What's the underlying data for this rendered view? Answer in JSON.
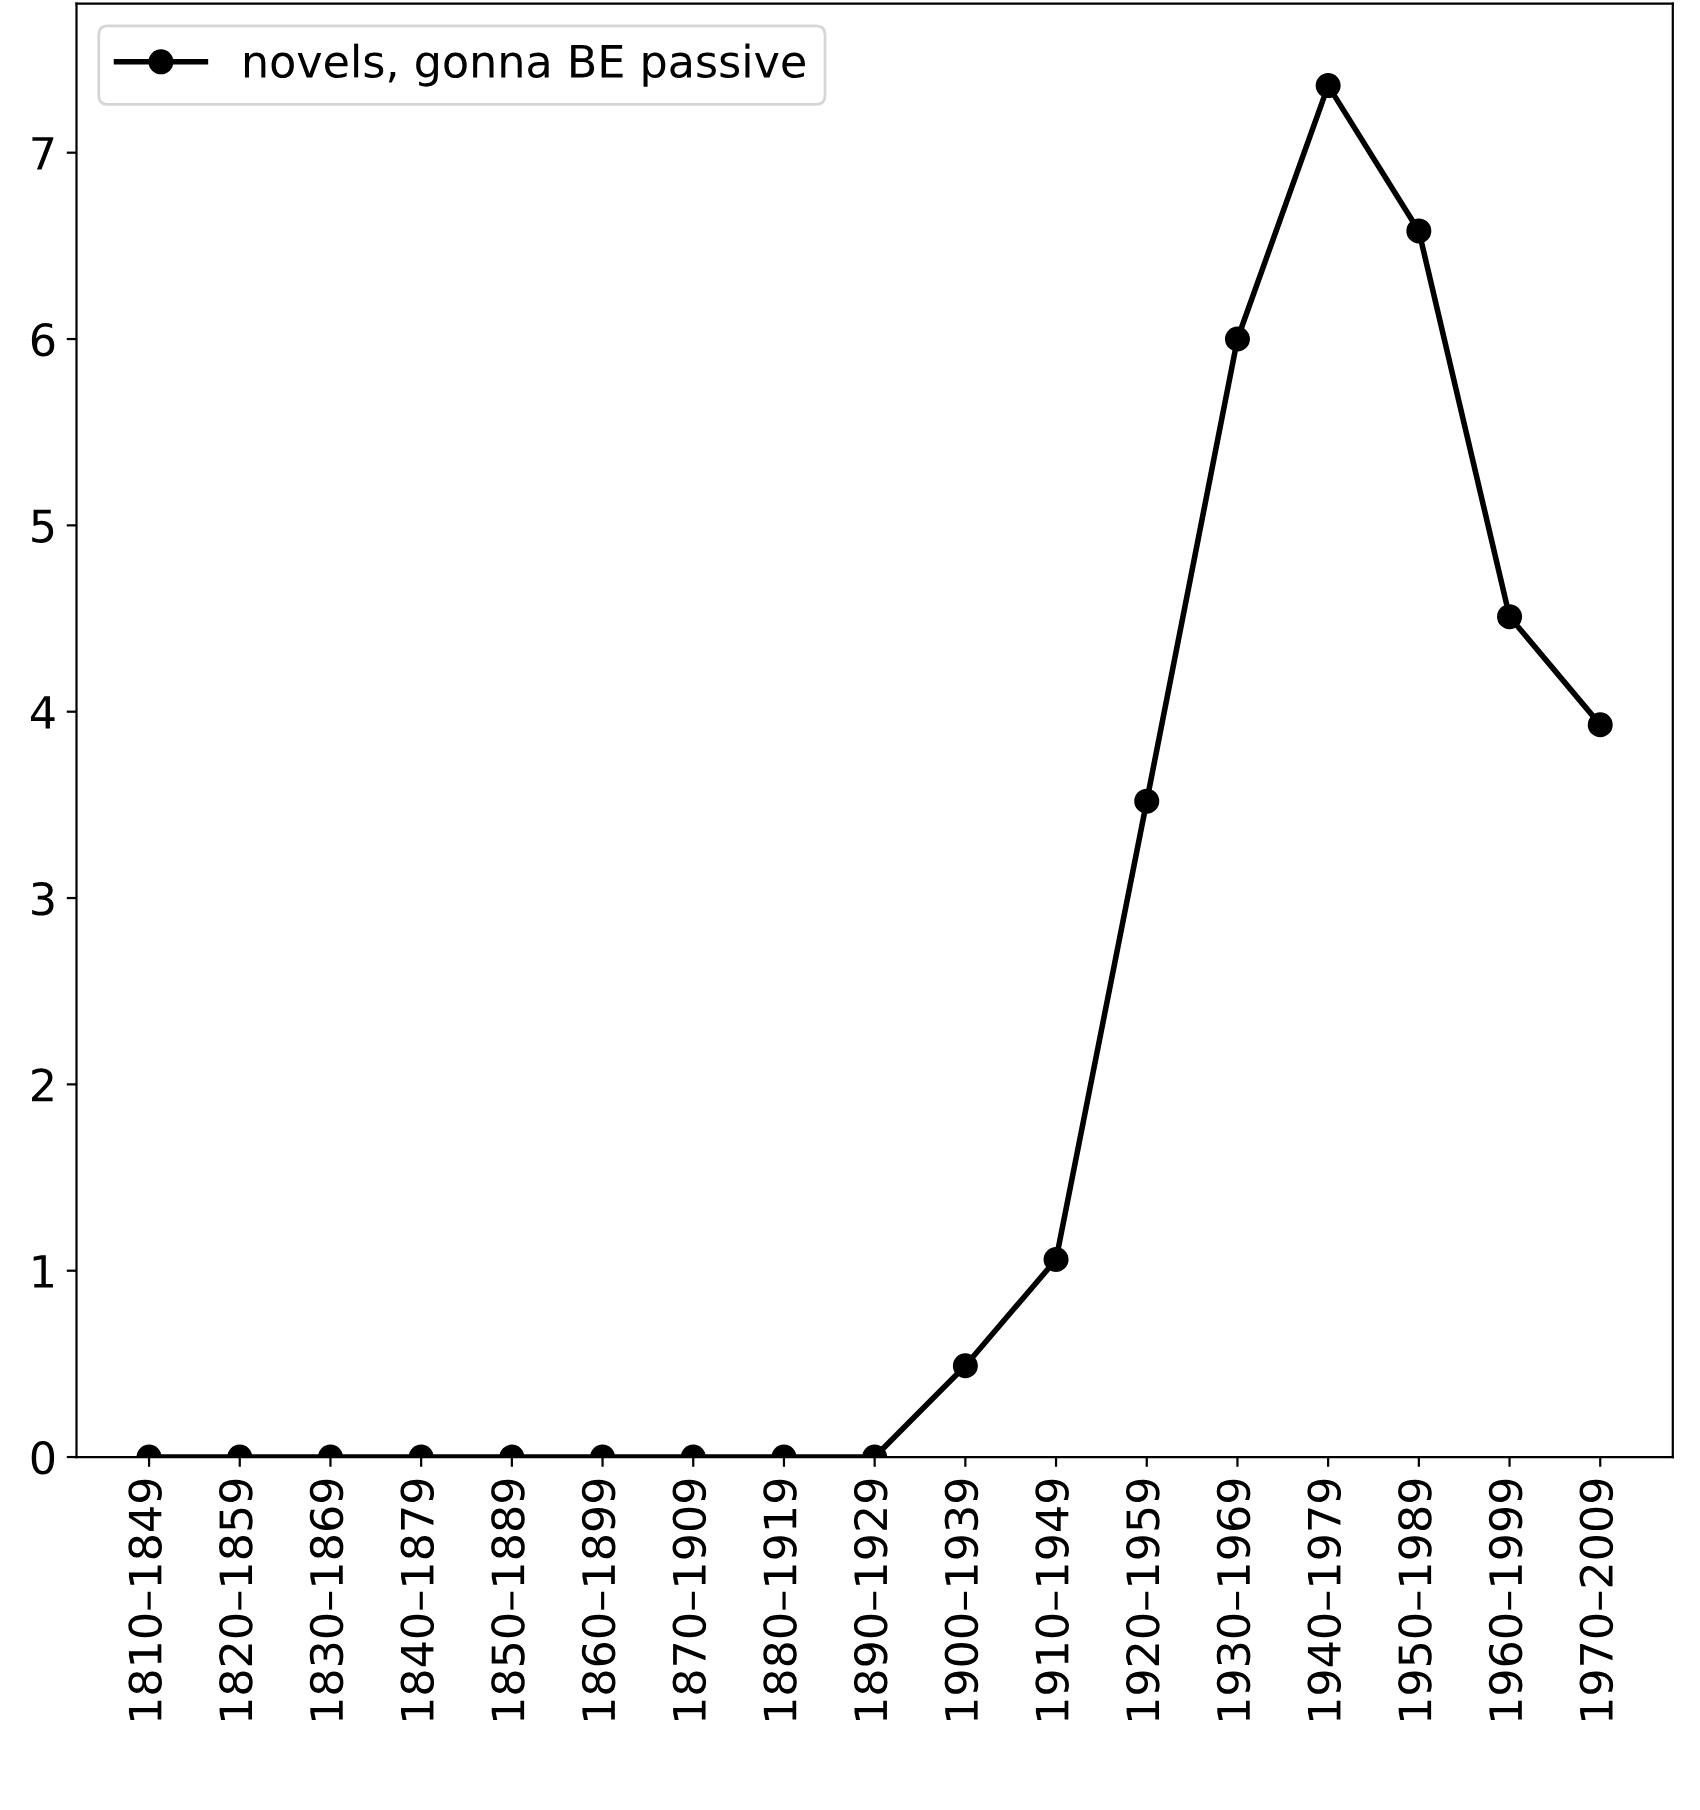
{
  "chart_data": {
    "type": "line",
    "categories": [
      "1810–1849",
      "1820–1859",
      "1830–1869",
      "1840–1879",
      "1850–1889",
      "1860–1899",
      "1870–1909",
      "1880–1919",
      "1890–1929",
      "1900–1939",
      "1910–1949",
      "1920–1959",
      "1930–1969",
      "1940–1979",
      "1950–1989",
      "1960–1999",
      "1970–2009"
    ],
    "series": [
      {
        "name": "novels, gonna BE passive",
        "color": "#000000",
        "values": [
          0,
          0,
          0,
          0,
          0,
          0,
          0,
          0,
          0,
          0.49,
          1.06,
          3.52,
          6.0,
          7.36,
          6.58,
          4.51,
          3.93
        ]
      }
    ],
    "ylim": [
      0,
      7.8
    ],
    "yticks": [
      0,
      1,
      2,
      3,
      4,
      5,
      6,
      7
    ],
    "marker": "circle",
    "line_style": "solid",
    "legend": "top left",
    "grid": false
  }
}
